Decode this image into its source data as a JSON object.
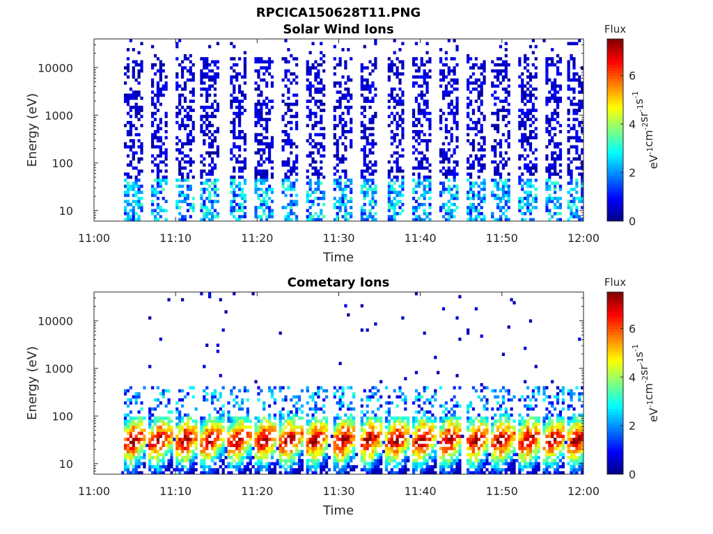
{
  "figure": {
    "filename": "RPCICA150628T11.PNG"
  },
  "chart_data": [
    {
      "type": "heatmap",
      "title": "Solar Wind Ions",
      "xlabel": "Time",
      "ylabel": "Energy (eV)",
      "x_ticks": [
        "11:00",
        "11:10",
        "11:20",
        "11:30",
        "11:40",
        "11:50",
        "12:00"
      ],
      "x_range": [
        "11:00",
        "12:00"
      ],
      "y_scale": "log",
      "y_ticks": [
        {
          "value": 10,
          "label": "10"
        },
        {
          "value": 100,
          "label": "100"
        },
        {
          "value": 1000,
          "label": "1000"
        },
        {
          "value": 10000,
          "label": "10000"
        }
      ],
      "y_range": [
        6,
        40000
      ],
      "colorbar": {
        "title": "Flux",
        "unit_parts": [
          "eV",
          "-1",
          "cm",
          "-2",
          "sr",
          "-1",
          "s",
          "-1"
        ],
        "ticks": [
          0,
          2,
          4,
          6
        ],
        "range": [
          0,
          7.5
        ],
        "colormap": "jet"
      },
      "bursts_minutes": [
        4.8,
        8.0,
        11.2,
        14.2,
        17.6,
        20.8,
        24.0,
        27.1,
        30.5,
        33.7,
        37.0,
        40.2,
        43.5,
        46.8,
        49.9,
        53.2,
        56.3,
        59.2
      ],
      "description_levels": {
        "low_energy_flux": 3.0,
        "high_energy_flux": 0.8
      }
    },
    {
      "type": "heatmap",
      "title": "Cometary Ions",
      "xlabel": "Time",
      "ylabel": "Energy (eV)",
      "x_ticks": [
        "11:00",
        "11:10",
        "11:20",
        "11:30",
        "11:40",
        "11:50",
        "12:00"
      ],
      "x_range": [
        "11:00",
        "12:00"
      ],
      "y_scale": "log",
      "y_ticks": [
        {
          "value": 10,
          "label": "10"
        },
        {
          "value": 100,
          "label": "100"
        },
        {
          "value": 1000,
          "label": "1000"
        },
        {
          "value": 10000,
          "label": "10000"
        }
      ],
      "y_range": [
        6,
        40000
      ],
      "colorbar": {
        "title": "Flux",
        "unit_parts": [
          "eV",
          "-1",
          "cm",
          "-2",
          "sr",
          "-1",
          "s",
          "-1"
        ],
        "ticks": [
          0,
          2,
          4,
          6
        ],
        "range": [
          0,
          7.5
        ],
        "colormap": "jet"
      },
      "bursts_minutes": [
        4.8,
        8.0,
        11.2,
        14.2,
        17.6,
        20.8,
        24.0,
        27.1,
        30.5,
        33.7,
        37.0,
        40.2,
        43.5,
        46.8,
        49.9,
        53.2,
        56.3,
        59.2
      ],
      "description_levels": {
        "peak_flux": 6.8,
        "peak_energy_eV": 25
      }
    }
  ]
}
